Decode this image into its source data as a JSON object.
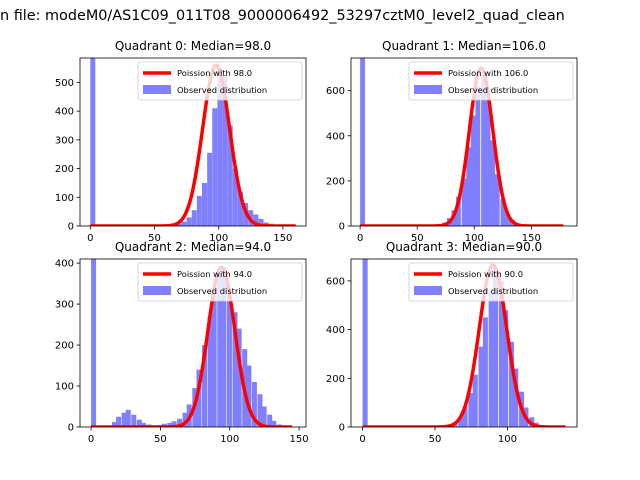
{
  "figure": {
    "suptitle": "n file: modeM0/AS1C09_011T08_9000006492_53297cztM0_level2_quad_clean"
  },
  "colors": {
    "hist": "#8080ff",
    "fit": "#ff0000",
    "axes": "#000000",
    "background": "#ffffff"
  },
  "chart_data": [
    {
      "type": "bar",
      "title": "Quadrant 0: Median=98.0",
      "median": 98.0,
      "fit_label": "Poission with 98.0",
      "hist_label": "Observed distribution",
      "xlim": [
        -8,
        168
      ],
      "ylim": [
        0,
        585
      ],
      "xticks": [
        0,
        50,
        100,
        150
      ],
      "yticks": [
        0,
        100,
        200,
        300,
        400,
        500
      ],
      "legend": "upper right",
      "bin_width": 3.92,
      "hist": [
        [
          0,
          585
        ],
        [
          63,
          4
        ],
        [
          67,
          8
        ],
        [
          71,
          15
        ],
        [
          75,
          30
        ],
        [
          79,
          55
        ],
        [
          83,
          105
        ],
        [
          87,
          150
        ],
        [
          91,
          255
        ],
        [
          95,
          410
        ],
        [
          99,
          550
        ],
        [
          103,
          520
        ],
        [
          107,
          350
        ],
        [
          111,
          200
        ],
        [
          115,
          120
        ],
        [
          119,
          80
        ],
        [
          123,
          55
        ],
        [
          127,
          40
        ],
        [
          131,
          25
        ],
        [
          135,
          12
        ],
        [
          139,
          8
        ],
        [
          143,
          4
        ]
      ],
      "fit_mean": 98,
      "fit_peak": 560,
      "fit_sigma": 10.5,
      "fit_x": [
        0,
        160
      ]
    },
    {
      "type": "bar",
      "title": "Quadrant 1: Median=106.0",
      "median": 106.0,
      "fit_label": "Poission with 106.0",
      "hist_label": "Observed distribution",
      "xlim": [
        -8,
        190
      ],
      "ylim": [
        0,
        745
      ],
      "xticks": [
        0,
        50,
        100,
        150
      ],
      "yticks": [
        0,
        200,
        400,
        600
      ],
      "legend": "upper right",
      "bin_width": 4.25,
      "hist": [
        [
          0,
          745
        ],
        [
          63,
          3
        ],
        [
          67,
          6
        ],
        [
          72,
          15
        ],
        [
          76,
          35
        ],
        [
          80,
          70
        ],
        [
          84,
          130
        ],
        [
          89,
          210
        ],
        [
          93,
          350
        ],
        [
          97,
          490
        ],
        [
          101,
          620
        ],
        [
          106,
          670
        ],
        [
          110,
          560
        ],
        [
          114,
          380
        ],
        [
          118,
          230
        ],
        [
          123,
          120
        ],
        [
          127,
          55
        ],
        [
          131,
          28
        ],
        [
          135,
          12
        ],
        [
          140,
          5
        ]
      ],
      "fit_mean": 106,
      "fit_peak": 700,
      "fit_sigma": 10.3,
      "fit_x": [
        0,
        178
      ]
    },
    {
      "type": "bar",
      "title": "Quadrant 2: Median=94.0",
      "median": 94.0,
      "fit_label": "Poission with 94.0",
      "hist_label": "Observed distribution",
      "xlim": [
        -8,
        155
      ],
      "ylim": [
        0,
        410
      ],
      "xticks": [
        0,
        50,
        100,
        150
      ],
      "yticks": [
        0,
        100,
        200,
        300,
        400
      ],
      "legend": "upper right",
      "bin_width": 3.6,
      "hist": [
        [
          0,
          410
        ],
        [
          15,
          12
        ],
        [
          18,
          25
        ],
        [
          22,
          35
        ],
        [
          25,
          42
        ],
        [
          29,
          30
        ],
        [
          33,
          18
        ],
        [
          36,
          10
        ],
        [
          40,
          6
        ],
        [
          44,
          4
        ],
        [
          48,
          5
        ],
        [
          51,
          8
        ],
        [
          55,
          10
        ],
        [
          58,
          14
        ],
        [
          62,
          20
        ],
        [
          66,
          35
        ],
        [
          69,
          55
        ],
        [
          73,
          95
        ],
        [
          76,
          140
        ],
        [
          80,
          200
        ],
        [
          84,
          270
        ],
        [
          87,
          330
        ],
        [
          91,
          375
        ],
        [
          94,
          390
        ],
        [
          98,
          320
        ],
        [
          102,
          280
        ],
        [
          105,
          240
        ],
        [
          109,
          190
        ],
        [
          112,
          150
        ],
        [
          116,
          110
        ],
        [
          120,
          80
        ],
        [
          123,
          50
        ],
        [
          127,
          30
        ],
        [
          130,
          15
        ],
        [
          134,
          6
        ]
      ],
      "fit_mean": 94,
      "fit_peak": 390,
      "fit_sigma": 9.7,
      "fit_x": [
        0,
        145
      ]
    },
    {
      "type": "bar",
      "title": "Quadrant 3: Median=90.0",
      "median": 90.0,
      "fit_label": "Poission with 90.0",
      "hist_label": "Observed distribution",
      "xlim": [
        -8,
        148
      ],
      "ylim": [
        0,
        690
      ],
      "xticks": [
        0,
        50,
        100
      ],
      "yticks": [
        0,
        200,
        400,
        600
      ],
      "legend": "upper right",
      "bin_width": 3.5,
      "hist": [
        [
          0,
          690
        ],
        [
          55,
          3
        ],
        [
          59,
          8
        ],
        [
          62,
          18
        ],
        [
          66,
          40
        ],
        [
          69,
          85
        ],
        [
          73,
          140
        ],
        [
          76,
          215
        ],
        [
          80,
          330
        ],
        [
          83,
          450
        ],
        [
          87,
          560
        ],
        [
          90,
          650
        ],
        [
          94,
          600
        ],
        [
          97,
          480
        ],
        [
          101,
          350
        ],
        [
          104,
          240
        ],
        [
          108,
          145
        ],
        [
          111,
          80
        ],
        [
          115,
          40
        ],
        [
          118,
          18
        ],
        [
          122,
          8
        ],
        [
          125,
          4
        ]
      ],
      "fit_mean": 90,
      "fit_peak": 665,
      "fit_sigma": 9.5,
      "fit_x": [
        0,
        140
      ]
    }
  ]
}
